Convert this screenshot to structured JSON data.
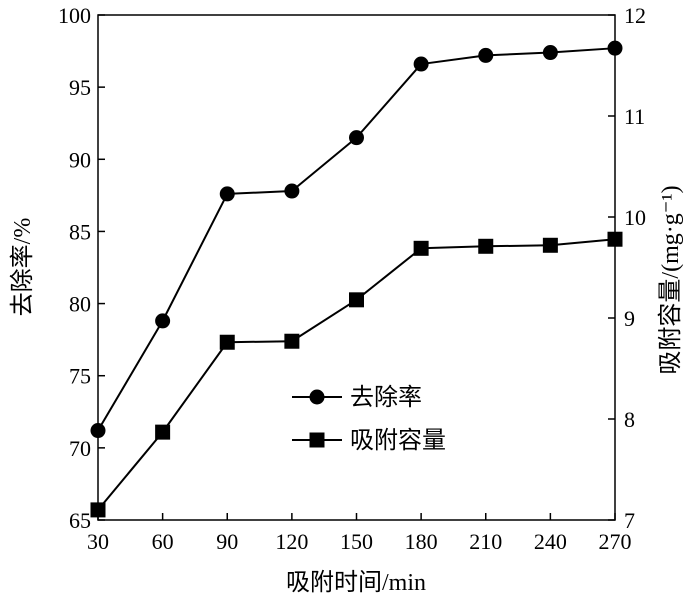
{
  "chart_data": {
    "type": "line",
    "x": [
      30,
      60,
      90,
      120,
      150,
      180,
      210,
      240,
      270
    ],
    "xlabel": "吸附时间/min",
    "xlim": [
      30,
      270
    ],
    "ylabel_left": "去除率/%",
    "ylim_left": [
      65,
      100
    ],
    "yticks_left": [
      65,
      70,
      75,
      80,
      85,
      90,
      95,
      100
    ],
    "ylabel_right": "吸附容量/(mg·g⁻¹)",
    "ylim_right": [
      7,
      12
    ],
    "yticks_right": [
      7,
      8,
      9,
      10,
      11,
      12
    ],
    "grid": false,
    "legend_position": "center",
    "series": [
      {
        "name": "去除率",
        "axis": "left",
        "marker": "circle",
        "values": [
          71.2,
          78.8,
          87.6,
          87.8,
          91.5,
          96.6,
          97.2,
          97.4,
          97.7
        ]
      },
      {
        "name": "吸附容量",
        "axis": "right",
        "marker": "square",
        "values": [
          7.1,
          7.87,
          8.76,
          8.77,
          9.18,
          9.69,
          9.71,
          9.72,
          9.78
        ]
      }
    ]
  }
}
